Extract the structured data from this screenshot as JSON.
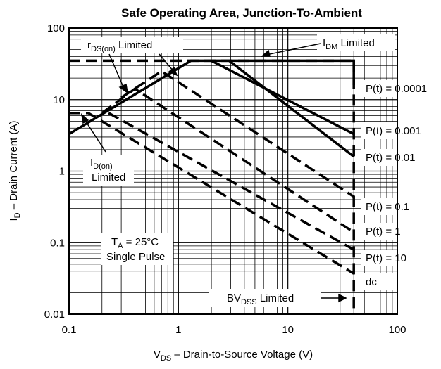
{
  "chart_data": {
    "type": "line",
    "title": "Safe Operating Area, Junction-To-Ambient",
    "x_axis": {
      "label_main": "V",
      "label_sub": "DS",
      "label_rest": " –  Drain-to-Source Voltage (V)",
      "scale": "log",
      "range": [
        0.1,
        100
      ],
      "ticks": [
        {
          "value": 0.1,
          "label": "0.1"
        },
        {
          "value": 1,
          "label": "1"
        },
        {
          "value": 10,
          "label": "10"
        },
        {
          "value": 100,
          "label": "100"
        }
      ]
    },
    "y_axis": {
      "label_main": "I",
      "label_sub": "D",
      "label_rest": " – Drain Current (A)",
      "scale": "log",
      "range": [
        0.01,
        100
      ],
      "ticks": [
        {
          "value": 0.01,
          "label": "0.01"
        },
        {
          "value": 0.1,
          "label": "0.1"
        },
        {
          "value": 1,
          "label": "1"
        },
        {
          "value": 10,
          "label": "10"
        },
        {
          "value": 100,
          "label": "100"
        }
      ]
    },
    "grid": true,
    "series": [
      {
        "name": "P(t) = 0.0001",
        "style": "solid",
        "points": [
          [
            0.1,
            3.3
          ],
          [
            1.3,
            35
          ],
          [
            40,
            35
          ],
          [
            40,
            16
          ]
        ]
      },
      {
        "name": "P(t) = 0.001",
        "style": "solid",
        "points": [
          [
            2.0,
            35
          ],
          [
            40,
            3.3
          ]
        ]
      },
      {
        "name": "P(t) = 0.01",
        "style": "solid",
        "points": [
          [
            2.9,
            35
          ],
          [
            40,
            1.6
          ]
        ]
      },
      {
        "name": "P(t) = 0.1",
        "style": "dashed",
        "points": [
          [
            0.3,
            10.7
          ],
          [
            0.7,
            25
          ],
          [
            40,
            0.44
          ]
        ]
      },
      {
        "name": "P(t) = 1",
        "style": "dashed",
        "points": [
          [
            0.2,
            6.5
          ],
          [
            0.4,
            14.2
          ],
          [
            40,
            0.14
          ]
        ]
      },
      {
        "name": "P(t) = 10",
        "style": "dashed",
        "points": [
          [
            0.23,
            6.5
          ],
          [
            40,
            0.08
          ]
        ]
      },
      {
        "name": "dc",
        "style": "dashed",
        "points": [
          [
            0.1,
            6.5
          ],
          [
            0.15,
            6.5
          ],
          [
            40,
            0.037
          ]
        ]
      },
      {
        "name": "",
        "style": "dashed",
        "points": [
          [
            0.1,
            35
          ],
          [
            40,
            35
          ]
        ]
      },
      {
        "name": "",
        "style": "dashed",
        "points": [
          [
            40,
            35
          ],
          [
            40,
            0.01
          ]
        ]
      }
    ],
    "annotations": {
      "rds": {
        "main": "r",
        "sub": "DS(on)",
        "rest": " Limited"
      },
      "idm": {
        "main": "I",
        "sub": "DM",
        "rest": " Limited"
      },
      "idon": {
        "main": "I",
        "sub": "D(on)",
        "line2": "Limited"
      },
      "ta": {
        "main": "T",
        "sub": "A",
        "rest": " = 25°C",
        "line2": "Single Pulse"
      },
      "bvdss": {
        "main": "BV",
        "sub": "DSS",
        "rest": " Limited"
      },
      "pt_labels": [
        "P(t) = 0.0001",
        "P(t) = 0.001",
        "P(t) = 0.01",
        "P(t) = 0.1",
        "P(t) = 1",
        "P(t) = 10",
        "dc"
      ]
    }
  }
}
